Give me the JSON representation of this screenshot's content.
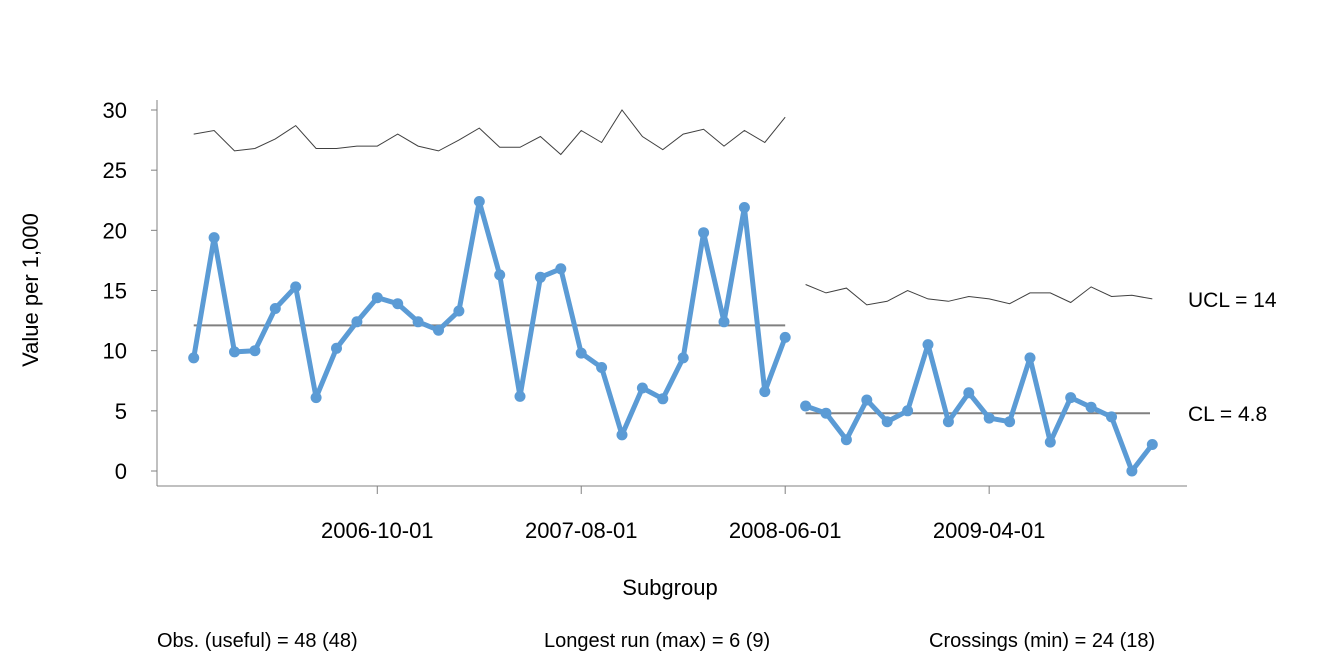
{
  "chart_data": {
    "type": "line",
    "xlabel": "Subgroup",
    "ylabel": "Value per 1,000",
    "ylim": [
      0,
      30
    ],
    "y_ticks": [
      "0",
      "5",
      "10",
      "15",
      "20",
      "25",
      "30"
    ],
    "x_ticks": [
      {
        "label": "2006-10-01",
        "index": 9
      },
      {
        "label": "2007-08-01",
        "index": 19
      },
      {
        "label": "2008-06-01",
        "index": 29
      },
      {
        "label": "2009-04-01",
        "index": 39
      }
    ],
    "x_range": [
      -1.8,
      48.7
    ],
    "grid": false,
    "colors": {
      "series": "#5B9BD5",
      "center_line": "#808080",
      "limit_line": "#404040"
    },
    "series": [
      {
        "values": [
          9.4,
          19.4,
          9.9,
          10.0,
          13.5,
          15.3,
          6.1,
          10.2,
          12.4,
          14.4,
          13.9,
          12.4,
          11.7,
          13.3,
          22.4,
          16.3,
          6.2,
          16.1,
          16.8,
          9.8,
          8.6,
          3.0,
          6.9,
          6.0,
          9.4,
          19.8,
          12.4,
          21.9,
          6.6,
          11.1,
          5.4,
          4.8,
          2.6,
          5.9,
          4.1,
          5.0,
          10.5,
          4.1,
          6.5,
          4.4,
          4.1,
          9.4,
          2.4,
          6.1,
          5.3,
          4.5,
          0.0,
          2.2
        ]
      }
    ],
    "phases": [
      {
        "start": 0,
        "end": 29,
        "center": 12.1
      },
      {
        "start": 30,
        "end": 47,
        "center": 4.8
      }
    ],
    "ucl": [
      28.0,
      28.3,
      26.6,
      26.8,
      27.6,
      28.7,
      26.8,
      26.8,
      27.0,
      27.0,
      28.0,
      27.0,
      26.6,
      27.5,
      28.5,
      26.9,
      26.9,
      27.8,
      26.3,
      28.3,
      27.3,
      30.0,
      27.8,
      26.7,
      28.0,
      28.4,
      27.0,
      28.3,
      27.3,
      29.4,
      15.5,
      14.8,
      15.2,
      13.8,
      14.1,
      15.0,
      14.3,
      14.1,
      14.5,
      14.3,
      13.9,
      14.8,
      14.8,
      14.0,
      15.3,
      14.5,
      14.6,
      14.3
    ],
    "annotations": {
      "ucl_label": "UCL = 14",
      "cl_label": "CL = 4.8"
    }
  },
  "footer": {
    "obs": "Obs. (useful) = 48 (48)",
    "longest_run": "Longest run (max) = 6 (9)",
    "crossings": "Crossings (min) = 24 (18)"
  }
}
